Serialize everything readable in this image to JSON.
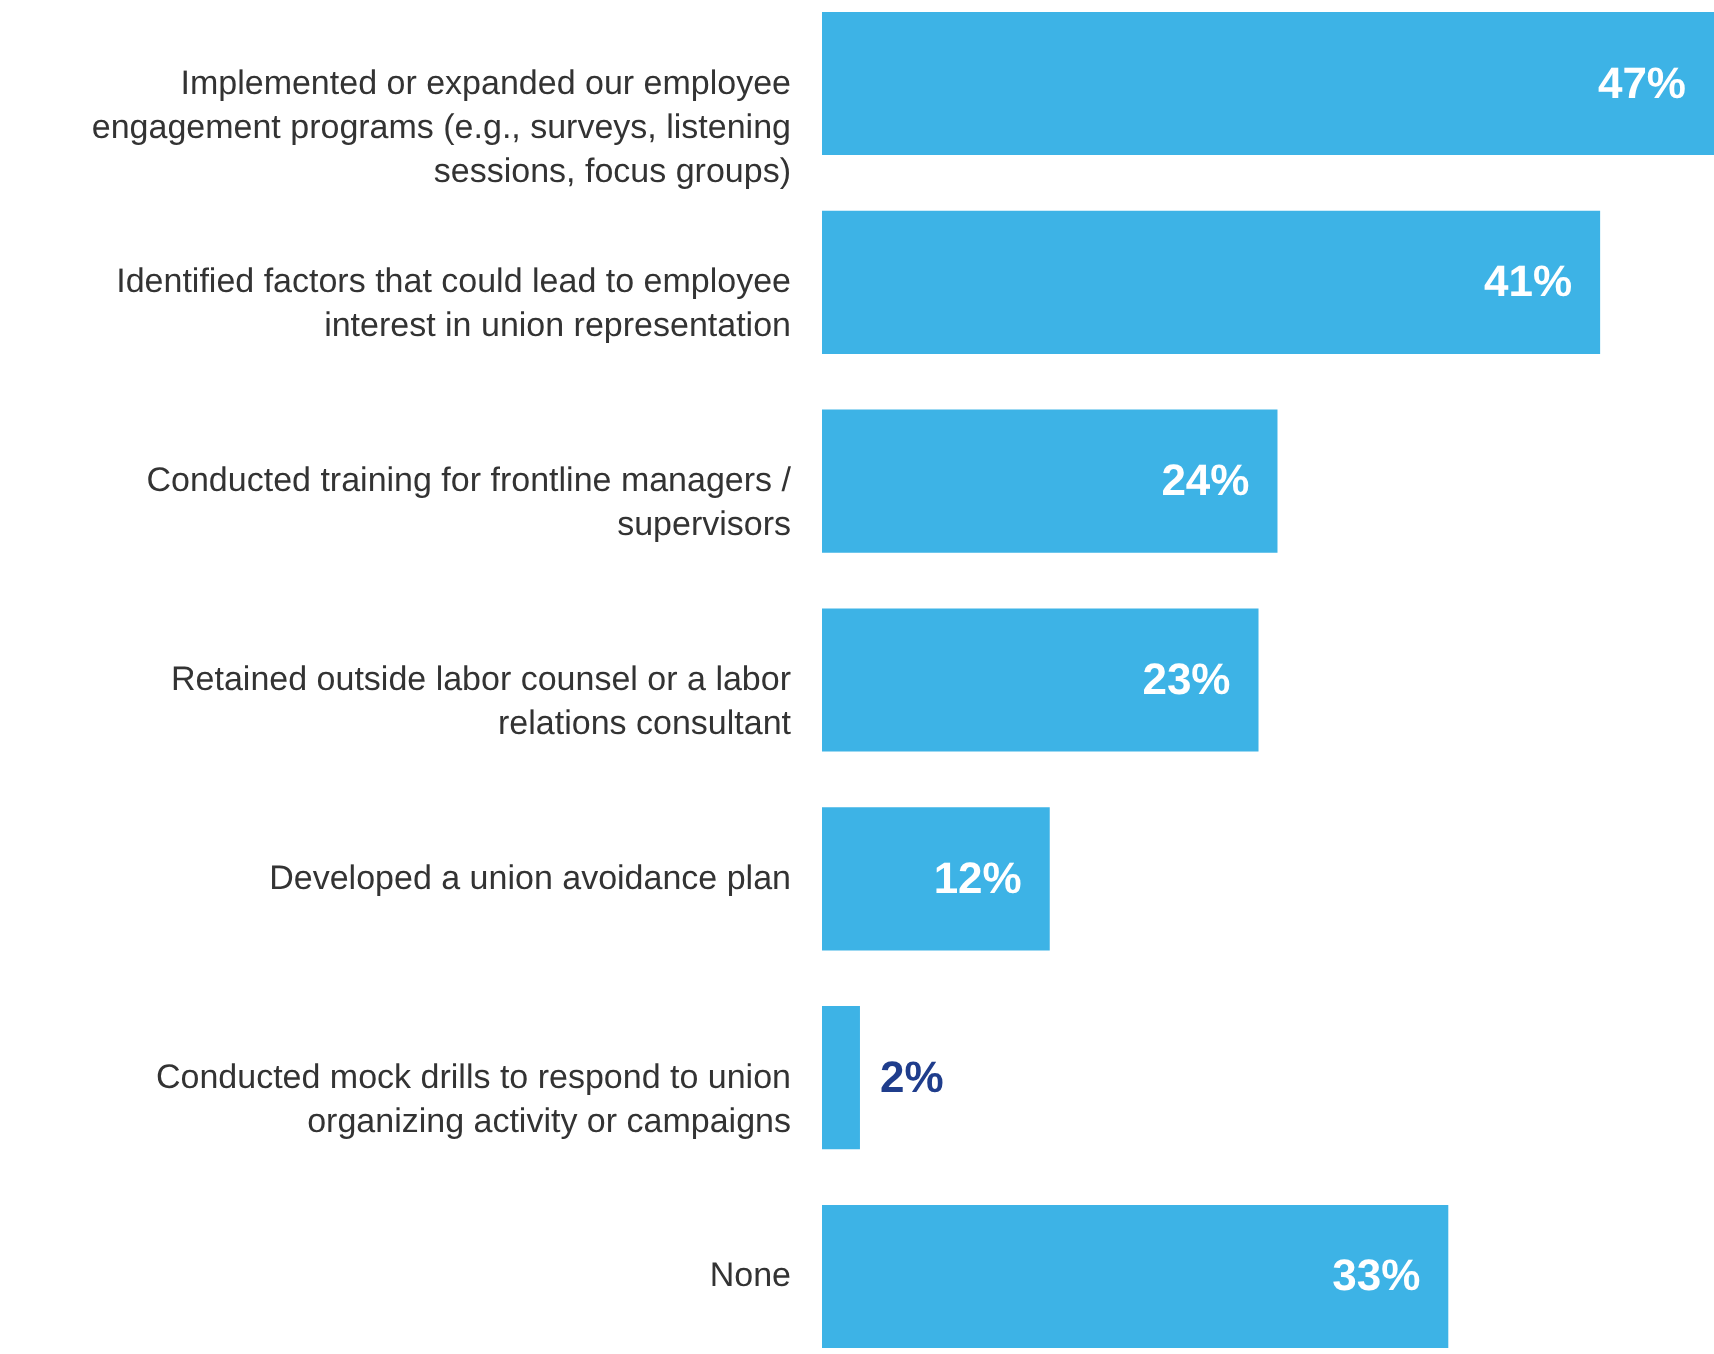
{
  "chart_data": {
    "type": "bar",
    "orientation": "horizontal",
    "categories": [
      "Implemented or expanded our employee engagement programs (e.g., surveys, listening sessions, focus groups)",
      "Identified factors that could lead to employee interest in union representation",
      "Conducted training for frontline managers / supervisors",
      "Retained outside labor counsel or a labor relations consultant",
      "Developed a union avoidance plan",
      "Conducted mock drills to respond to union organizing activity or campaigns",
      "None"
    ],
    "values": [
      47,
      41,
      24,
      23,
      12,
      2,
      33
    ],
    "value_labels": [
      "47%",
      "41%",
      "24%",
      "23%",
      "12%",
      "2%",
      "33%"
    ],
    "color": "#3db3e6"
  }
}
